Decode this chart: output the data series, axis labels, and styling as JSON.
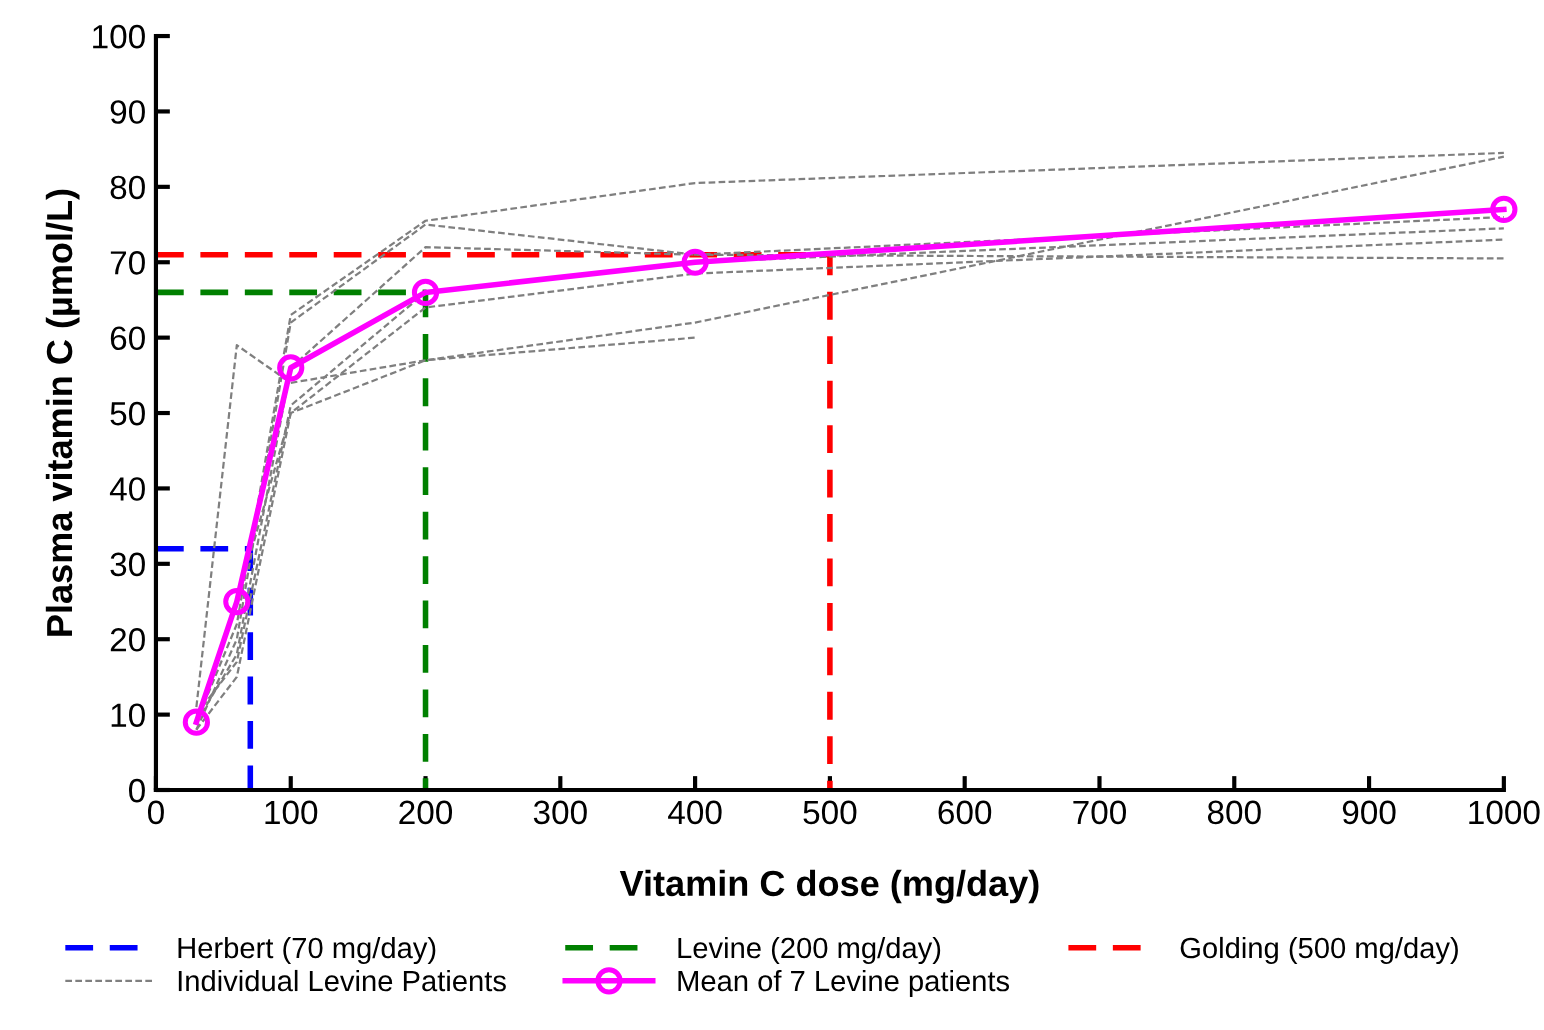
{
  "chart_data": {
    "type": "line",
    "xlabel": "Vitamin C dose (mg/day)",
    "ylabel": "Plasma vitamin C (µmol/L)",
    "xlim": [
      0,
      1000
    ],
    "ylim": [
      0,
      100
    ],
    "xticks": [
      0,
      100,
      200,
      300,
      400,
      500,
      600,
      700,
      800,
      900,
      1000
    ],
    "yticks": [
      0,
      10,
      20,
      30,
      40,
      50,
      60,
      70,
      80,
      90,
      100
    ],
    "grid": false,
    "legend": "bottom",
    "series": [
      {
        "name": "Herbert (70 mg/day)",
        "color": "#0000ff",
        "line_style": "dashed",
        "x": [
          0,
          70,
          70
        ],
        "values": [
          32,
          32,
          0
        ]
      },
      {
        "name": "Levine (200 mg/day)",
        "color": "#008000",
        "line_style": "dashed",
        "x": [
          0,
          200,
          200
        ],
        "values": [
          66,
          66,
          0
        ]
      },
      {
        "name": "Golding (500 mg/day)",
        "color": "#ff0000",
        "line_style": "dashed",
        "x": [
          0,
          500,
          500
        ],
        "values": [
          71,
          71,
          0
        ]
      },
      {
        "name": "Individual Levine Patients",
        "color": "#7f7f7f",
        "line_style": "dotted",
        "x": [
          30,
          60,
          100,
          200,
          400
        ],
        "values": [
          11,
          59,
          54,
          57,
          60
        ]
      },
      {
        "color": "#7f7f7f",
        "line_style": "dotted",
        "x": [
          30,
          60,
          100,
          200,
          400,
          1000
        ],
        "values": [
          9,
          22,
          63,
          75.5,
          80.5,
          84.5
        ]
      },
      {
        "color": "#7f7f7f",
        "line_style": "dotted",
        "x": [
          30,
          60,
          100,
          200,
          400,
          1000
        ],
        "values": [
          8,
          20,
          62,
          75,
          71,
          70.5
        ]
      },
      {
        "color": "#7f7f7f",
        "line_style": "dotted",
        "x": [
          30,
          60,
          100,
          200,
          400,
          1000
        ],
        "values": [
          9,
          18,
          56,
          72,
          71,
          76
        ]
      },
      {
        "color": "#7f7f7f",
        "line_style": "dotted",
        "x": [
          30,
          60,
          100,
          200,
          400,
          1000
        ],
        "values": [
          10,
          17,
          51,
          66,
          70,
          74.5
        ]
      },
      {
        "color": "#7f7f7f",
        "line_style": "dotted",
        "x": [
          30,
          60,
          100,
          200,
          400,
          1000
        ],
        "values": [
          8,
          15,
          50,
          64,
          68.5,
          73
        ]
      },
      {
        "color": "#7f7f7f",
        "line_style": "dotted",
        "x": [
          30,
          60,
          100,
          200,
          400,
          1000
        ],
        "values": [
          9,
          25,
          50,
          57,
          62,
          84
        ]
      },
      {
        "name": "Mean of 7 Levine patients",
        "color": "#ff00ff",
        "line_style": "solid",
        "marker": "circle",
        "x": [
          30,
          60,
          100,
          200,
          400,
          1000
        ],
        "values": [
          9,
          25,
          56,
          66,
          70,
          77
        ]
      }
    ]
  }
}
